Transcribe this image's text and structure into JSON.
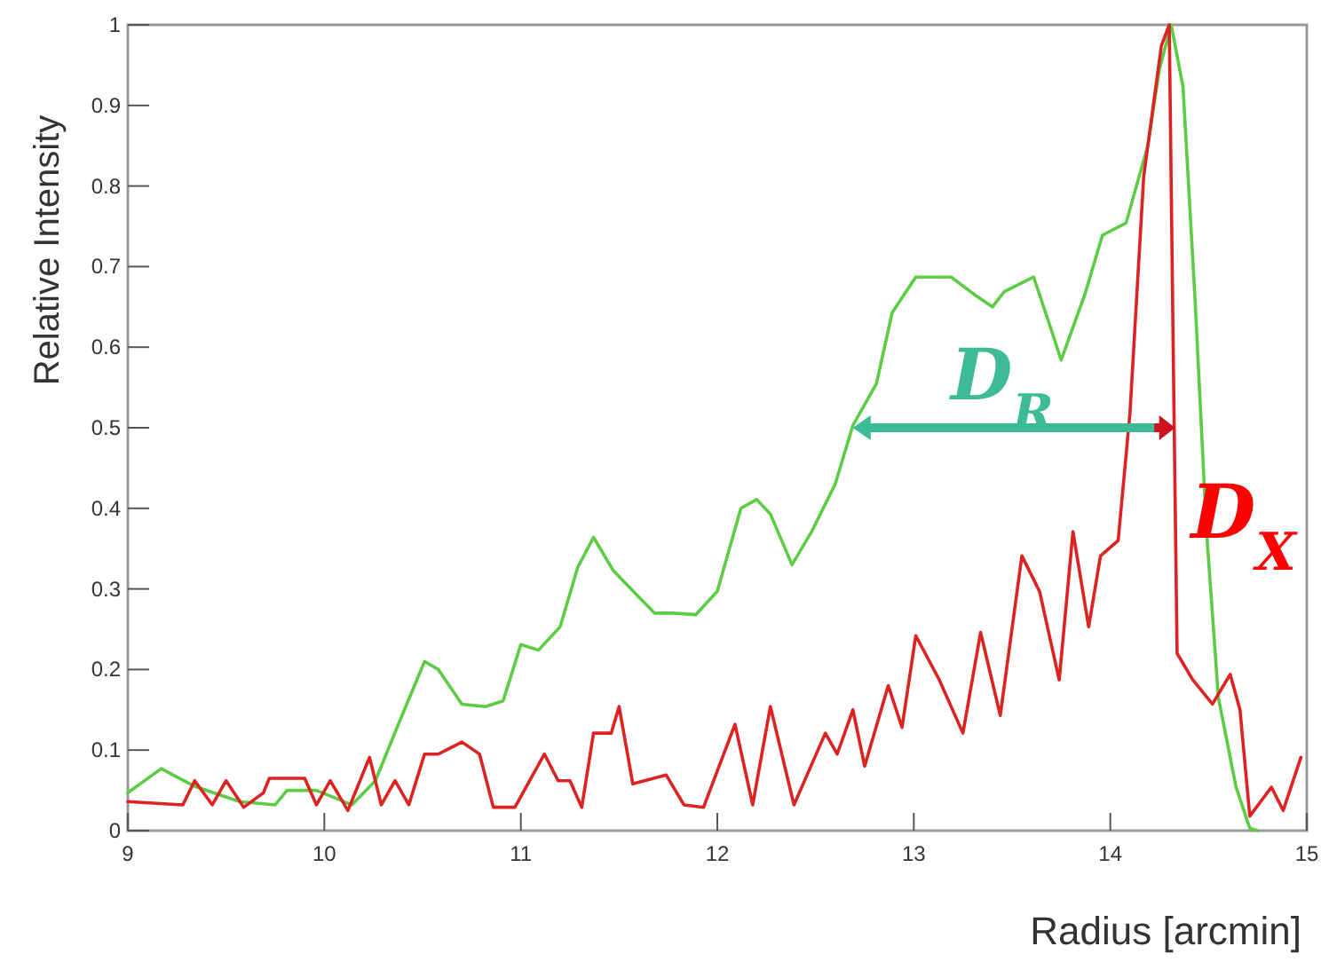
{
  "chart_data": {
    "type": "line",
    "xlabel": "Radius [arcmin]",
    "ylabel": "Relative Intensity",
    "xlim": [
      9,
      15
    ],
    "xticks": [
      9,
      10,
      11,
      12,
      13,
      14,
      15
    ],
    "ylim": [
      0,
      1
    ],
    "yticks": [
      0,
      {
        "value": 0.1,
        "label": "0.1"
      },
      {
        "value": 0.2,
        "label": "0.2"
      },
      {
        "value": 0.3,
        "label": "0.3"
      },
      {
        "value": 0.4,
        "label": "0.4"
      },
      {
        "value": 0.5,
        "label": "0.5"
      },
      {
        "value": 0.6,
        "label": "0.6"
      },
      {
        "value": 0.7,
        "label": "0.7"
      },
      {
        "value": 0.8,
        "label": "0.8"
      },
      {
        "value": 0.9,
        "label": "0.9"
      },
      1
    ],
    "grid": false,
    "line_style": "solid",
    "annotations": [
      "D$_{R}$",
      "D$_{X}$"
    ],
    "series": [
      {
        "color": "#5ccc44",
        "x": [
          9.0,
          9.17,
          9.34,
          9.57,
          9.75,
          9.81,
          9.96,
          10.14,
          10.26,
          10.37,
          10.51,
          10.58,
          10.7,
          10.82,
          10.91,
          11.0,
          11.09,
          11.2,
          11.29,
          11.37,
          11.47,
          11.56,
          11.68,
          11.77,
          11.89,
          12.0,
          12.12,
          12.2,
          12.27,
          12.38,
          12.48,
          12.6,
          12.69,
          12.81,
          12.89,
          13.01,
          13.19,
          13.31,
          13.4,
          13.46,
          13.61,
          13.68,
          13.75,
          13.87,
          13.96,
          14.08,
          14.19,
          14.25,
          14.31,
          14.37,
          14.43,
          14.49,
          14.55,
          14.64,
          14.71,
          14.75
        ],
        "values": [
          0.047,
          0.077,
          0.055,
          0.036,
          0.032,
          0.05,
          0.05,
          0.032,
          0.062,
          0.128,
          0.21,
          0.2,
          0.157,
          0.154,
          0.161,
          0.231,
          0.224,
          0.253,
          0.327,
          0.364,
          0.323,
          0.3,
          0.27,
          0.27,
          0.268,
          0.297,
          0.4,
          0.411,
          0.393,
          0.33,
          0.371,
          0.43,
          0.503,
          0.555,
          0.643,
          0.687,
          0.687,
          0.665,
          0.65,
          0.669,
          0.687,
          0.636,
          0.584,
          0.665,
          0.739,
          0.754,
          0.849,
          0.945,
          1.0,
          0.923,
          0.665,
          0.371,
          0.165,
          0.054,
          0.003,
          0.0
        ]
      },
      {
        "color": "#dd2222",
        "x": [
          9.0,
          9.28,
          9.34,
          9.43,
          9.5,
          9.59,
          9.69,
          9.72,
          9.9,
          9.96,
          10.03,
          10.12,
          10.23,
          10.29,
          10.36,
          10.43,
          10.51,
          10.58,
          10.7,
          10.79,
          10.86,
          10.97,
          11.12,
          11.19,
          11.25,
          11.31,
          11.37,
          11.46,
          11.5,
          11.57,
          11.74,
          11.83,
          11.93,
          12.09,
          12.18,
          12.27,
          12.39,
          12.55,
          12.61,
          12.69,
          12.75,
          12.87,
          12.94,
          13.01,
          13.13,
          13.25,
          13.34,
          13.44,
          13.55,
          13.64,
          13.74,
          13.81,
          13.89,
          13.95,
          14.04,
          14.1,
          14.17,
          14.26,
          14.3,
          14.32,
          14.34,
          14.42,
          14.52,
          14.61,
          14.66,
          14.71,
          14.82,
          14.88,
          14.97
        ],
        "values": [
          0.036,
          0.032,
          0.062,
          0.032,
          0.062,
          0.029,
          0.047,
          0.065,
          0.065,
          0.032,
          0.062,
          0.025,
          0.091,
          0.032,
          0.062,
          0.032,
          0.095,
          0.095,
          0.11,
          0.095,
          0.029,
          0.029,
          0.095,
          0.062,
          0.062,
          0.029,
          0.121,
          0.121,
          0.154,
          0.058,
          0.069,
          0.032,
          0.029,
          0.132,
          0.032,
          0.154,
          0.032,
          0.121,
          0.095,
          0.15,
          0.08,
          0.18,
          0.128,
          0.242,
          0.187,
          0.121,
          0.246,
          0.143,
          0.341,
          0.297,
          0.187,
          0.371,
          0.253,
          0.341,
          0.36,
          0.518,
          0.812,
          0.974,
          1.0,
          0.6,
          0.22,
          0.187,
          0.157,
          0.194,
          0.15,
          0.018,
          0.054,
          0.025,
          0.091
        ]
      }
    ]
  }
}
